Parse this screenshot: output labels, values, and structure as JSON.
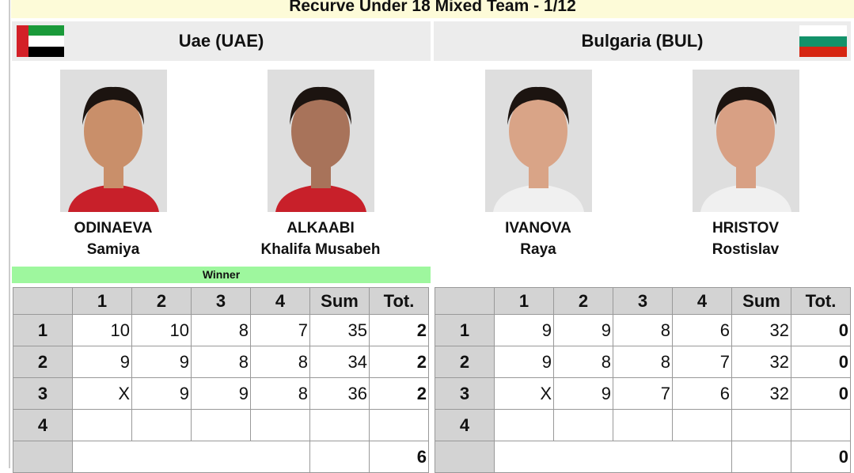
{
  "title": "Recurve Under 18 Mixed Team - 1/12",
  "teams": [
    {
      "name": "Uae (UAE)",
      "flag": "uae-flag",
      "athletes": [
        {
          "last": "ODINAEVA",
          "first": "Samiya"
        },
        {
          "last": "ALKAABI",
          "first": "Khalifa Musabeh"
        }
      ],
      "winner_label": "Winner",
      "rows": [
        [
          "1",
          "10",
          "10",
          "8",
          "7",
          "35",
          "2"
        ],
        [
          "2",
          "9",
          "9",
          "8",
          "8",
          "34",
          "2"
        ],
        [
          "3",
          "X",
          "9",
          "9",
          "8",
          "36",
          "2"
        ],
        [
          "4",
          "",
          "",
          "",
          "",
          "",
          ""
        ]
      ],
      "total": "6"
    },
    {
      "name": "Bulgaria (BUL)",
      "flag": "bulgaria-flag",
      "athletes": [
        {
          "last": "IVANOVA",
          "first": "Raya"
        },
        {
          "last": "HRISTOV",
          "first": "Rostislav"
        }
      ],
      "rows": [
        [
          "1",
          "9",
          "9",
          "8",
          "6",
          "32",
          "0"
        ],
        [
          "2",
          "9",
          "8",
          "8",
          "7",
          "32",
          "0"
        ],
        [
          "3",
          "X",
          "9",
          "7",
          "6",
          "32",
          "0"
        ],
        [
          "4",
          "",
          "",
          "",
          "",
          "",
          ""
        ]
      ],
      "total": "0"
    }
  ],
  "headers": [
    "",
    "1",
    "2",
    "3",
    "4",
    "Sum",
    "Tot."
  ],
  "colors": {
    "winner": "#9ef79e",
    "title_bg": "#fdfbd8",
    "header_bg": "#d3d3d3"
  }
}
